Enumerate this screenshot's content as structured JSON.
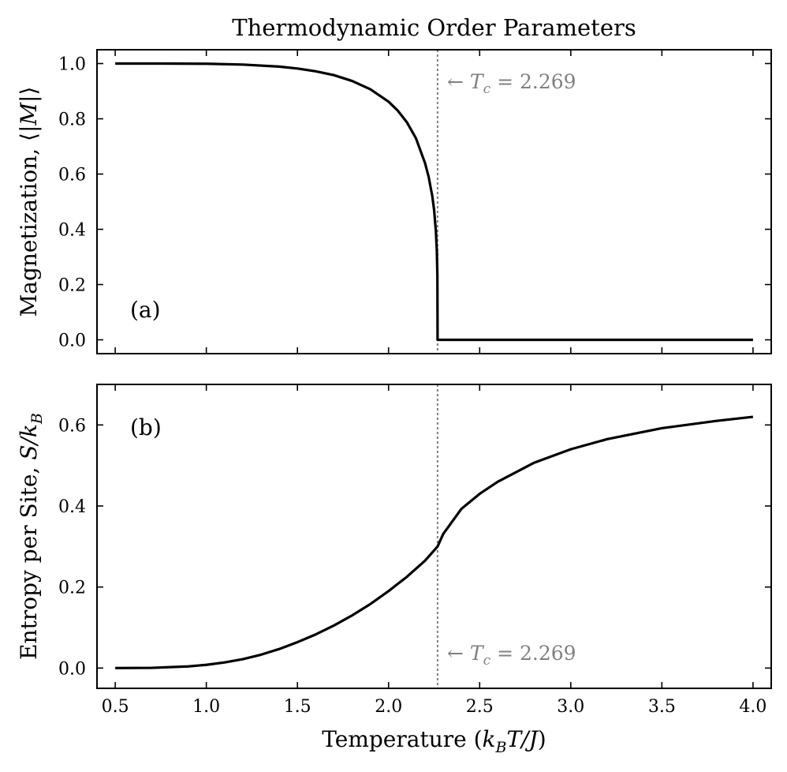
{
  "chart_data": {
    "title": "Thermodynamic Order Parameters",
    "type": "line",
    "shared_x": {
      "label_prefix": "Temperature (",
      "label_math": "k",
      "label_sub": "B",
      "label_math2": "T/J",
      "label_suffix": ")",
      "lim": [
        0.4,
        4.1
      ],
      "ticks": [
        0.5,
        1.0,
        1.5,
        2.0,
        2.5,
        3.0,
        3.5,
        4.0
      ],
      "tick_labels": [
        "0.5",
        "1.0",
        "1.5",
        "2.0",
        "2.5",
        "3.0",
        "3.5",
        "4.0"
      ]
    },
    "critical_temperature": {
      "value": 2.269,
      "label_arrow": "← ",
      "label_symbol": "T",
      "label_sub": "c",
      "label_value": " = 2.269"
    },
    "panels": [
      {
        "id": "a",
        "panel_label": "(a)",
        "ylabel_text": "Magnetization, ⟨|",
        "ylabel_math": "M",
        "ylabel_suffix": "|⟩",
        "ylim": [
          -0.05,
          1.05
        ],
        "yticks": [
          0.0,
          0.2,
          0.4,
          0.6,
          0.8,
          1.0
        ],
        "ytick_labels": [
          "0.0",
          "0.2",
          "0.4",
          "0.6",
          "0.8",
          "1.0"
        ],
        "grid": false,
        "series": [
          {
            "x": [
              0.5,
              0.75,
              1.0,
              1.2,
              1.4,
              1.5,
              1.6,
              1.7,
              1.8,
              1.9,
              2.0,
              2.05,
              2.1,
              2.15,
              2.2,
              2.22,
              2.24,
              2.25,
              2.26,
              2.265,
              2.268,
              2.269,
              2.27,
              2.3,
              2.5,
              3.0,
              3.5,
              4.0
            ],
            "y": [
              1.0,
              1.0,
              0.9992,
              0.9962,
              0.989,
              0.982,
              0.972,
              0.958,
              0.937,
              0.907,
              0.862,
              0.83,
              0.788,
              0.73,
              0.64,
              0.59,
              0.52,
              0.47,
              0.39,
              0.32,
              0.23,
              0.0,
              0.0,
              0.0,
              0.0,
              0.0,
              0.0,
              0.0
            ]
          }
        ]
      },
      {
        "id": "b",
        "panel_label": "(b)",
        "ylabel_text": "Entropy per Site, ",
        "ylabel_math": "S/k",
        "ylabel_sub": "B",
        "ylim": [
          -0.05,
          0.7
        ],
        "yticks": [
          0.0,
          0.2,
          0.4,
          0.6
        ],
        "ytick_labels": [
          "0.0",
          "0.2",
          "0.4",
          "0.6"
        ],
        "grid": false,
        "series": [
          {
            "x": [
              0.5,
              0.7,
              0.9,
              1.0,
              1.1,
              1.2,
              1.3,
              1.4,
              1.5,
              1.6,
              1.7,
              1.8,
              1.9,
              2.0,
              2.1,
              2.2,
              2.269,
              2.3,
              2.4,
              2.5,
              2.6,
              2.8,
              3.0,
              3.2,
              3.5,
              3.8,
              4.0
            ],
            "y": [
              0.0,
              0.0005,
              0.004,
              0.008,
              0.014,
              0.022,
              0.033,
              0.047,
              0.064,
              0.083,
              0.105,
              0.13,
              0.158,
              0.19,
              0.225,
              0.265,
              0.3,
              0.331,
              0.393,
              0.43,
              0.46,
              0.507,
              0.54,
              0.565,
              0.592,
              0.61,
              0.62
            ]
          }
        ]
      }
    ]
  }
}
